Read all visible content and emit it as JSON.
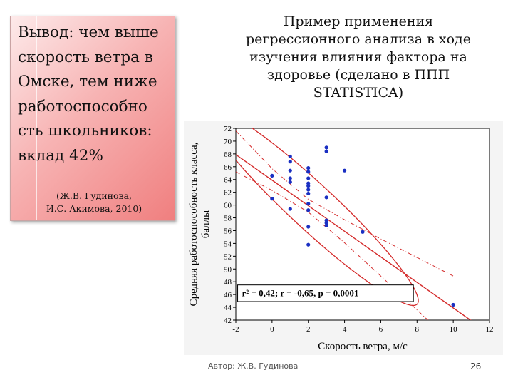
{
  "conclusion": {
    "text": "Вывод: чем выше скорость ветра в Омске, тем ниже работоспособно сть школьников: вклад 42%",
    "citation_line1": "(Ж.В. Гудинова,",
    "citation_line2": "И.С. Акимова, 2010)"
  },
  "slide": {
    "title": "Пример применения регрессионного анализа в ходе изучения влияния фактора на здоровье (сделано в ППП STATISTICA)",
    "footer_author": "Автор: Ж.В. Гудинова",
    "page_number": "26"
  },
  "colors": {
    "points": "#1a2fc2",
    "regression": "#d42a2a",
    "box_gradient_start": "#fdeaea",
    "box_gradient_end": "#f07f7f"
  },
  "chart_data": {
    "type": "scatter",
    "xlabel": "Скорость ветра, м/с",
    "ylabel": "Средняя работоспособность класса, баллы",
    "xlim": [
      -2,
      12
    ],
    "ylim": [
      42,
      72
    ],
    "xticks": [
      -2,
      0,
      2,
      4,
      6,
      8,
      10,
      12
    ],
    "yticks": [
      42,
      44,
      46,
      48,
      50,
      52,
      54,
      56,
      58,
      60,
      62,
      64,
      66,
      68,
      70,
      72
    ],
    "grid": false,
    "annotation": "r² = 0,42;  r = -0,65, p = 0,0001",
    "points": [
      {
        "x": 0,
        "y": 64.6
      },
      {
        "x": 0,
        "y": 61
      },
      {
        "x": 1,
        "y": 67.6
      },
      {
        "x": 1,
        "y": 66.8
      },
      {
        "x": 1,
        "y": 65.4
      },
      {
        "x": 1,
        "y": 64.2
      },
      {
        "x": 1,
        "y": 63.6
      },
      {
        "x": 1,
        "y": 59.4
      },
      {
        "x": 2,
        "y": 65.8
      },
      {
        "x": 2,
        "y": 65.2
      },
      {
        "x": 2,
        "y": 64.2
      },
      {
        "x": 2,
        "y": 63.4
      },
      {
        "x": 2,
        "y": 63
      },
      {
        "x": 2,
        "y": 62.4
      },
      {
        "x": 2,
        "y": 61.8
      },
      {
        "x": 2,
        "y": 60.2
      },
      {
        "x": 2,
        "y": 59.2
      },
      {
        "x": 2,
        "y": 56.6
      },
      {
        "x": 2,
        "y": 53.8
      },
      {
        "x": 3,
        "y": 69
      },
      {
        "x": 3,
        "y": 68.4
      },
      {
        "x": 3,
        "y": 61.2
      },
      {
        "x": 3,
        "y": 57.6
      },
      {
        "x": 3,
        "y": 57.2
      },
      {
        "x": 3,
        "y": 56.8
      },
      {
        "x": 4,
        "y": 65.4
      },
      {
        "x": 5,
        "y": 55.8
      },
      {
        "x": 10,
        "y": 44.4
      }
    ],
    "regression_line": {
      "intercept": 63.9,
      "slope": -2.0
    },
    "confidence_band": [
      {
        "x": -2,
        "lower": 65.2,
        "upper": 71.6
      },
      {
        "x": 0,
        "lower": 62.3,
        "upper": 65.7
      },
      {
        "x": 2,
        "lower": 58.9,
        "upper": 60.9
      },
      {
        "x": 4,
        "lower": 54.1,
        "upper": 57.7
      },
      {
        "x": 6,
        "lower": 48.9,
        "upper": 54.7
      },
      {
        "x": 8,
        "lower": 43.6,
        "upper": 51.8
      },
      {
        "x": 10,
        "lower": 38.3,
        "upper": 48.9
      }
    ],
    "ellipse": {
      "center": [
        2.2,
        59.8
      ],
      "semi_major": [
        5.65,
        -15.5
      ],
      "semi_minor": [
        1.6,
        0.55
      ]
    }
  }
}
